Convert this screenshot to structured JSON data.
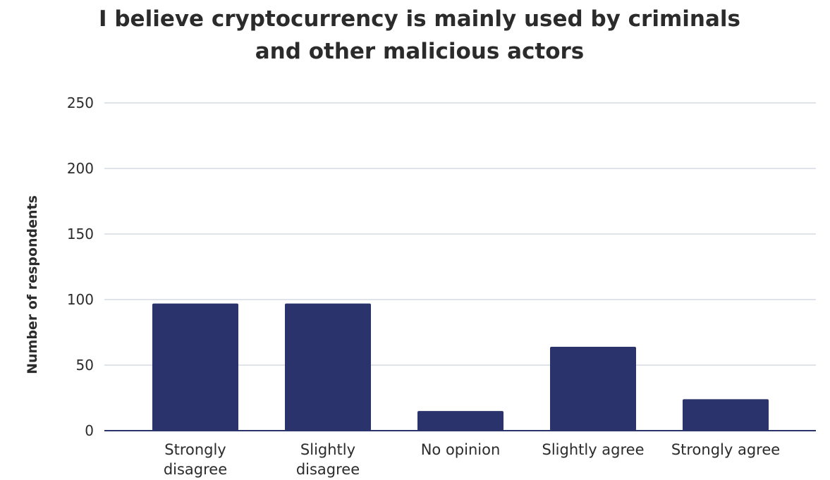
{
  "chart_data": {
    "type": "bar",
    "title_lines": [
      "I believe cryptocurrency is mainly used by criminals",
      "and other malicious actors"
    ],
    "xlabel": "",
    "ylabel": "Number of respondents",
    "categories": [
      [
        "Strongly",
        "disagree"
      ],
      [
        "Slightly",
        "disagree"
      ],
      [
        "No opinion"
      ],
      [
        "Slightly agree"
      ],
      [
        "Strongly agree"
      ]
    ],
    "values": [
      97,
      97,
      15,
      64,
      24
    ],
    "ylim": [
      0,
      250
    ],
    "yticks": [
      0,
      50,
      100,
      150,
      200,
      250
    ],
    "grid": true,
    "legend": "none",
    "colors": {
      "bar": "#2a336b",
      "grid": "#d7dae3",
      "axis": "#2a336b"
    }
  }
}
